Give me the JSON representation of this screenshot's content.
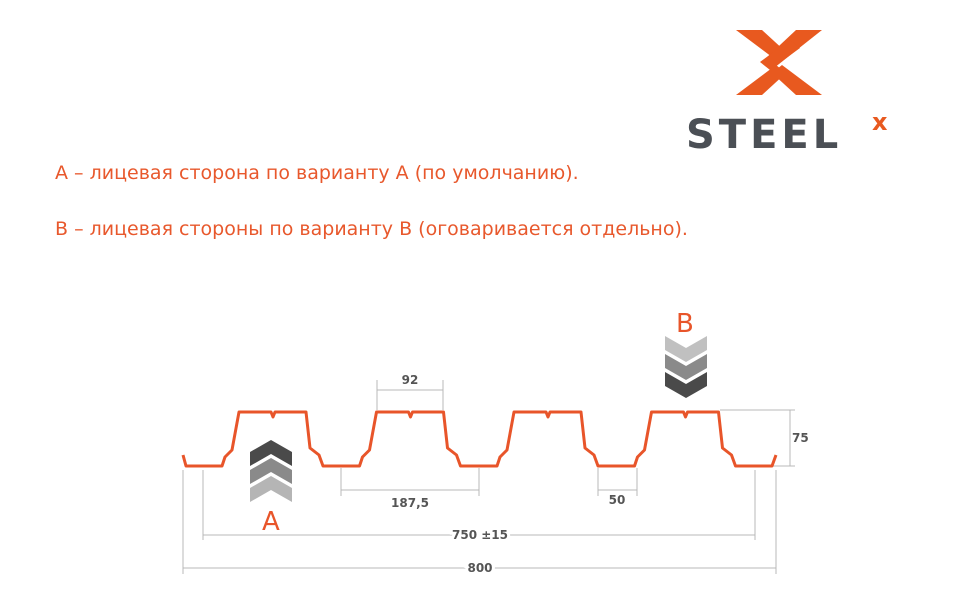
{
  "logo": {
    "text": "STEEL",
    "superscript": "x",
    "brand_color": "#e8591f",
    "text_color": "#4b4f55"
  },
  "notes": [
    "А – лицевая сторона по варианту А (по умолчанию).",
    "В – лицевая стороны по варианту В (оговаривается отдельно)."
  ],
  "diagram": {
    "profile_color": "#e8552a",
    "dimension_color": "#b8b8b8",
    "side_a_label": "A",
    "side_b_label": "B",
    "dimensions": {
      "rib_top_width": "92",
      "rib_pitch": "187,5",
      "bottom_width": "50",
      "height": "75",
      "working_width": "750 ±15",
      "total_width": "800"
    }
  }
}
